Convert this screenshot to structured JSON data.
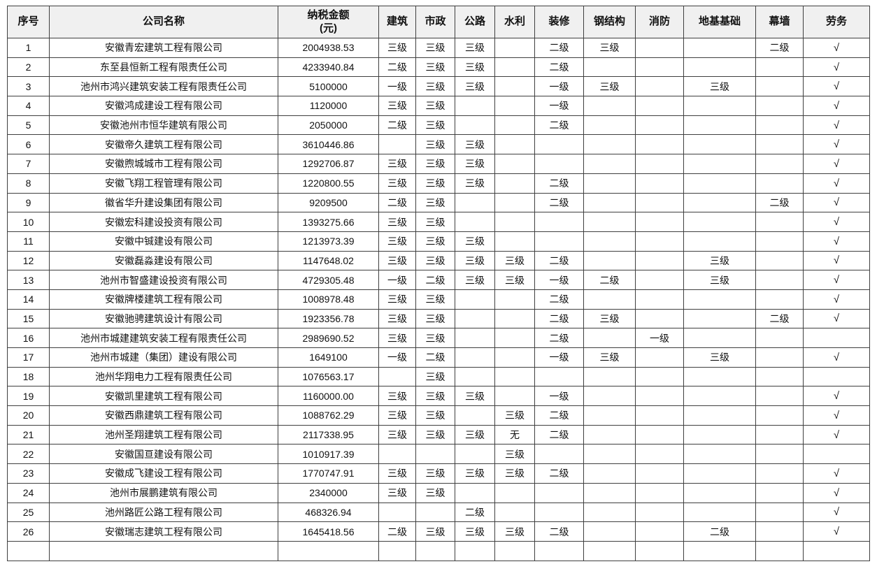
{
  "table": {
    "headers": [
      "序号",
      "公司名称",
      "纳税金额\n(元)",
      "建筑",
      "市政",
      "公路",
      "水利",
      "装修",
      "钢结构",
      "消防",
      "地基基础",
      "幕墙",
      "劳务"
    ],
    "column_keys": [
      "row-number",
      "company-name",
      "tax-amount",
      "construction",
      "municipal",
      "highway",
      "water-conservancy",
      "decoration",
      "steel-structure",
      "fire-protection",
      "foundation",
      "curtain-wall",
      "labor"
    ],
    "check_mark": "√",
    "header_bg_color": "#f0f0f0",
    "border_color": "#3f3f3f",
    "rows": [
      [
        "1",
        "安徽青宏建筑工程有限公司",
        "2004938.53",
        "三级",
        "三级",
        "三级",
        "",
        "二级",
        "三级",
        "",
        "",
        "二级",
        "√"
      ],
      [
        "2",
        "东至县恒新工程有限责任公司",
        "4233940.84",
        "二级",
        "三级",
        "三级",
        "",
        "二级",
        "",
        "",
        "",
        "",
        "√"
      ],
      [
        "3",
        "池州市鸿兴建筑安装工程有限责任公司",
        "5100000",
        "一级",
        "三级",
        "三级",
        "",
        "一级",
        "三级",
        "",
        "三级",
        "",
        "√"
      ],
      [
        "4",
        "安徽鸿成建设工程有限公司",
        "1120000",
        "三级",
        "三级",
        "",
        "",
        "一级",
        "",
        "",
        "",
        "",
        "√"
      ],
      [
        "5",
        "安徽池州市恒华建筑有限公司",
        "2050000",
        "二级",
        "三级",
        "",
        "",
        "二级",
        "",
        "",
        "",
        "",
        "√"
      ],
      [
        "6",
        "安徽帝久建筑工程有限公司",
        "3610446.86",
        "",
        "三级",
        "三级",
        "",
        "",
        "",
        "",
        "",
        "",
        "√"
      ],
      [
        "7",
        "安徽煦城城市工程有限公司",
        "1292706.87",
        "三级",
        "三级",
        "三级",
        "",
        "",
        "",
        "",
        "",
        "",
        "√"
      ],
      [
        "8",
        "安徽飞翔工程管理有限公司",
        "1220800.55",
        "三级",
        "三级",
        "三级",
        "",
        "二级",
        "",
        "",
        "",
        "",
        "√"
      ],
      [
        "9",
        "徽省华升建设集团有限公司",
        "9209500",
        "二级",
        "三级",
        "",
        "",
        "二级",
        "",
        "",
        "",
        "二级",
        "√"
      ],
      [
        "10",
        "安徽宏科建设投资有限公司",
        "1393275.66",
        "三级",
        "三级",
        "",
        "",
        "",
        "",
        "",
        "",
        "",
        "√"
      ],
      [
        "11",
        "安徽中铖建设有限公司",
        "1213973.39",
        "三级",
        "三级",
        "三级",
        "",
        "",
        "",
        "",
        "",
        "",
        "√"
      ],
      [
        "12",
        "安徽磊淼建设有限公司",
        "1147648.02",
        "三级",
        "三级",
        "三级",
        "三级",
        "二级",
        "",
        "",
        "三级",
        "",
        "√"
      ],
      [
        "13",
        "池州市智盛建设投资有限公司",
        "4729305.48",
        "一级",
        "二级",
        "三级",
        "三级",
        "一级",
        "二级",
        "",
        "三级",
        "",
        "√"
      ],
      [
        "14",
        "安徽牌楼建筑工程有限公司",
        "1008978.48",
        "三级",
        "三级",
        "",
        "",
        "二级",
        "",
        "",
        "",
        "",
        "√"
      ],
      [
        "15",
        "安徽驰骋建筑设计有限公司",
        "1923356.78",
        "三级",
        "三级",
        "",
        "",
        "二级",
        "三级",
        "",
        "",
        "二级",
        "√"
      ],
      [
        "16",
        "池州市城建建筑安装工程有限责任公司",
        "2989690.52",
        "三级",
        "三级",
        "",
        "",
        "二级",
        "",
        "一级",
        "",
        "",
        ""
      ],
      [
        "17",
        "池州市城建（集团）建设有限公司",
        "1649100",
        "一级",
        "二级",
        "",
        "",
        "一级",
        "三级",
        "",
        "三级",
        "",
        "√"
      ],
      [
        "18",
        "池州华翔电力工程有限责任公司",
        "1076563.17",
        "",
        "三级",
        "",
        "",
        "",
        "",
        "",
        "",
        "",
        ""
      ],
      [
        "19",
        "安徽凯里建筑工程有限公司",
        "1160000.00",
        "三级",
        "三级",
        "三级",
        "",
        "一级",
        "",
        "",
        "",
        "",
        "√"
      ],
      [
        "20",
        "安徽西鼎建筑工程有限公司",
        "1088762.29",
        "三级",
        "三级",
        "",
        "三级",
        "二级",
        "",
        "",
        "",
        "",
        "√"
      ],
      [
        "21",
        "池州圣翔建筑工程有限公司",
        "2117338.95",
        "三级",
        "三级",
        "三级",
        "无",
        "二级",
        "",
        "",
        "",
        "",
        "√"
      ],
      [
        "22",
        "安徽国亘建设有限公司",
        "1010917.39",
        "",
        "",
        "",
        "三级",
        "",
        "",
        "",
        "",
        "",
        ""
      ],
      [
        "23",
        "安徽成飞建设工程有限公司",
        "1770747.91",
        "三级",
        "三级",
        "三级",
        "三级",
        "二级",
        "",
        "",
        "",
        "",
        "√"
      ],
      [
        "24",
        "池州市展鹏建筑有限公司",
        "2340000",
        "三级",
        "三级",
        "",
        "",
        "",
        "",
        "",
        "",
        "",
        "√"
      ],
      [
        "25",
        "池州路匠公路工程有限公司",
        "468326.94",
        "",
        "",
        "二级",
        "",
        "",
        "",
        "",
        "",
        "",
        "√"
      ],
      [
        "26",
        "安徽瑞志建筑工程有限公司",
        "1645418.56",
        "二级",
        "三级",
        "三级",
        "三级",
        "二级",
        "",
        "",
        "二级",
        "",
        "√"
      ]
    ]
  }
}
